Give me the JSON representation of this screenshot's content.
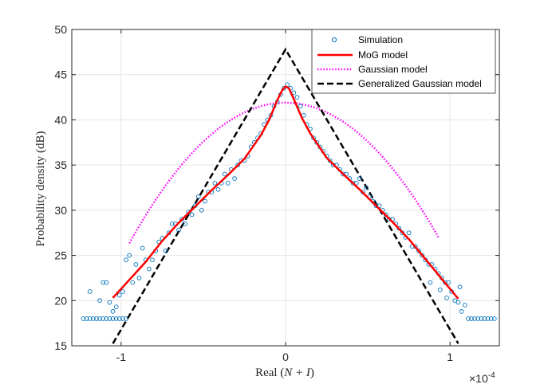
{
  "chart_data": {
    "type": "scatter+line",
    "title": "",
    "xlabel": "Real (N + I)",
    "xlabel_parts": {
      "prefix": "Real (",
      "math": "N + I",
      "suffix": ")"
    },
    "ylabel": "Probability density (dB)",
    "x_multiplier_label": "×10",
    "x_multiplier_exponent": "-4",
    "xlim": [
      -1.3,
      1.3
    ],
    "ylim": [
      15,
      50
    ],
    "xticks": [
      -1,
      0,
      1
    ],
    "xtick_labels": [
      "-1",
      "0",
      "1"
    ],
    "yticks": [
      15,
      20,
      25,
      30,
      35,
      40,
      45,
      50
    ],
    "ytick_labels": [
      "15",
      "20",
      "25",
      "30",
      "35",
      "40",
      "45",
      "50"
    ],
    "grid": true,
    "legend_position": "top-right",
    "colors": {
      "simulation": "#0072BD",
      "mog": "#FF0000",
      "gaussian": "#FF00FF",
      "generalized": "#000000",
      "grid": "#E6E6E6",
      "axis": "#262626"
    },
    "series": [
      {
        "name": "Simulation",
        "style": "markers",
        "points": [
          [
            -1.23,
            18
          ],
          [
            -1.21,
            18
          ],
          [
            -1.19,
            18
          ],
          [
            -1.17,
            18
          ],
          [
            -1.15,
            18
          ],
          [
            -1.13,
            18
          ],
          [
            -1.11,
            18
          ],
          [
            -1.09,
            18
          ],
          [
            -1.07,
            18
          ],
          [
            -1.05,
            18
          ],
          [
            -1.03,
            18
          ],
          [
            -1.01,
            18
          ],
          [
            -0.99,
            18
          ],
          [
            -0.97,
            18
          ],
          [
            -1.19,
            21
          ],
          [
            -1.13,
            20
          ],
          [
            -1.11,
            22
          ],
          [
            -1.09,
            22
          ],
          [
            -1.07,
            19.8
          ],
          [
            -1.05,
            18.8
          ],
          [
            -1.03,
            19.3
          ],
          [
            -1.01,
            20.6
          ],
          [
            -0.99,
            21
          ],
          [
            -0.97,
            24.5
          ],
          [
            -0.95,
            25
          ],
          [
            -0.93,
            22
          ],
          [
            -0.91,
            24
          ],
          [
            -0.89,
            22.5
          ],
          [
            -0.87,
            25.8
          ],
          [
            -0.85,
            24.5
          ],
          [
            -0.83,
            23.5
          ],
          [
            -0.81,
            24.5
          ],
          [
            -0.79,
            25.5
          ],
          [
            -0.77,
            26.5
          ],
          [
            -0.75,
            26.9
          ],
          [
            -0.73,
            25.5
          ],
          [
            -0.71,
            27.5
          ],
          [
            -0.69,
            28.5
          ],
          [
            -0.67,
            28.5
          ],
          [
            -0.65,
            27.8
          ],
          [
            -0.63,
            29
          ],
          [
            -0.61,
            28.5
          ],
          [
            -0.59,
            29.8
          ],
          [
            -0.57,
            29.5
          ],
          [
            -0.55,
            30.5
          ],
          [
            -0.53,
            31.5
          ],
          [
            -0.51,
            30
          ],
          [
            -0.49,
            31
          ],
          [
            -0.47,
            32
          ],
          [
            -0.45,
            32
          ],
          [
            -0.43,
            33
          ],
          [
            -0.41,
            32.3
          ],
          [
            -0.39,
            33
          ],
          [
            -0.37,
            34
          ],
          [
            -0.35,
            33
          ],
          [
            -0.33,
            34.5
          ],
          [
            -0.31,
            33.5
          ],
          [
            -0.29,
            35
          ],
          [
            -0.27,
            35.5
          ],
          [
            -0.25,
            35.5
          ],
          [
            -0.23,
            36
          ],
          [
            -0.21,
            37
          ],
          [
            -0.19,
            37.5
          ],
          [
            -0.17,
            38
          ],
          [
            -0.15,
            38.5
          ],
          [
            -0.13,
            39.5
          ],
          [
            -0.11,
            40
          ],
          [
            -0.09,
            40.5
          ],
          [
            -0.07,
            41.5
          ],
          [
            -0.05,
            42
          ],
          [
            -0.03,
            42.8
          ],
          [
            -0.01,
            43.5
          ],
          [
            0.01,
            43.9
          ],
          [
            0.03,
            43.5
          ],
          [
            0.05,
            43
          ],
          [
            0.07,
            42.5
          ],
          [
            0.09,
            41.5
          ],
          [
            0.11,
            40.5
          ],
          [
            0.13,
            39.5
          ],
          [
            0.15,
            39
          ],
          [
            0.17,
            38
          ],
          [
            0.19,
            37.5
          ],
          [
            0.21,
            37
          ],
          [
            0.23,
            36.5
          ],
          [
            0.25,
            36
          ],
          [
            0.27,
            35.5
          ],
          [
            0.29,
            35
          ],
          [
            0.31,
            35
          ],
          [
            0.33,
            34.5
          ],
          [
            0.35,
            34
          ],
          [
            0.37,
            34
          ],
          [
            0.39,
            33.5
          ],
          [
            0.41,
            33
          ],
          [
            0.43,
            33
          ],
          [
            0.45,
            33.5
          ],
          [
            0.47,
            32
          ],
          [
            0.49,
            32.5
          ],
          [
            0.51,
            31.5
          ],
          [
            0.53,
            31
          ],
          [
            0.55,
            30.5
          ],
          [
            0.57,
            30.5
          ],
          [
            0.59,
            30
          ],
          [
            0.61,
            29.5
          ],
          [
            0.63,
            29
          ],
          [
            0.65,
            29
          ],
          [
            0.67,
            28.5
          ],
          [
            0.69,
            28
          ],
          [
            0.71,
            27.5
          ],
          [
            0.73,
            27
          ],
          [
            0.75,
            27.5
          ],
          [
            0.77,
            26
          ],
          [
            0.79,
            26
          ],
          [
            0.81,
            25.5
          ],
          [
            0.83,
            25
          ],
          [
            0.85,
            24.5
          ],
          [
            0.87,
            24
          ],
          [
            0.89,
            24
          ],
          [
            0.91,
            23.5
          ],
          [
            0.93,
            23
          ],
          [
            0.95,
            22.5
          ],
          [
            0.97,
            22
          ],
          [
            0.99,
            22
          ],
          [
            1.01,
            21
          ],
          [
            1.03,
            20
          ],
          [
            1.05,
            19.8
          ],
          [
            1.07,
            18.8
          ],
          [
            1.09,
            19.5
          ],
          [
            1.11,
            18
          ],
          [
            1.13,
            18
          ],
          [
            1.15,
            18
          ],
          [
            1.17,
            18
          ],
          [
            1.19,
            18
          ],
          [
            1.21,
            18
          ],
          [
            1.23,
            18
          ],
          [
            1.25,
            18
          ],
          [
            1.27,
            18
          ],
          [
            1.06,
            21.5
          ],
          [
            0.88,
            22
          ],
          [
            0.94,
            21.2
          ],
          [
            0.98,
            20.3
          ]
        ]
      },
      {
        "name": "MoG model",
        "style": "solid",
        "points": [
          [
            -1.05,
            20.3
          ],
          [
            -0.95,
            22.3
          ],
          [
            -0.85,
            24.3
          ],
          [
            -0.75,
            26.6
          ],
          [
            -0.65,
            28.6
          ],
          [
            -0.55,
            30.4
          ],
          [
            -0.45,
            32.2
          ],
          [
            -0.35,
            33.9
          ],
          [
            -0.25,
            35.7
          ],
          [
            -0.15,
            38.3
          ],
          [
            -0.1,
            40
          ],
          [
            -0.05,
            42.2
          ],
          [
            -0.02,
            43.3
          ],
          [
            0,
            43.7
          ],
          [
            0.02,
            43.5
          ],
          [
            0.05,
            42.3
          ],
          [
            0.1,
            40.2
          ],
          [
            0.15,
            38.5
          ],
          [
            0.25,
            35.8
          ],
          [
            0.35,
            34
          ],
          [
            0.45,
            32.3
          ],
          [
            0.55,
            30.5
          ],
          [
            0.65,
            28.7
          ],
          [
            0.75,
            26.8
          ],
          [
            0.85,
            24.6
          ],
          [
            0.95,
            22.4
          ],
          [
            1.05,
            20.2
          ]
        ]
      },
      {
        "name": "Gaussian model",
        "style": "dotted",
        "curve": {
          "peak_db": 41.9,
          "sigma": 0.355,
          "x_min": -0.95,
          "x_max": 0.93
        }
      },
      {
        "name": "Generalized Gaussian model",
        "style": "dashed",
        "curve": {
          "peak_db": 47.8,
          "slope_db_per_unit": 31,
          "x_min": -1.05,
          "x_max": 1.05
        }
      }
    ]
  }
}
